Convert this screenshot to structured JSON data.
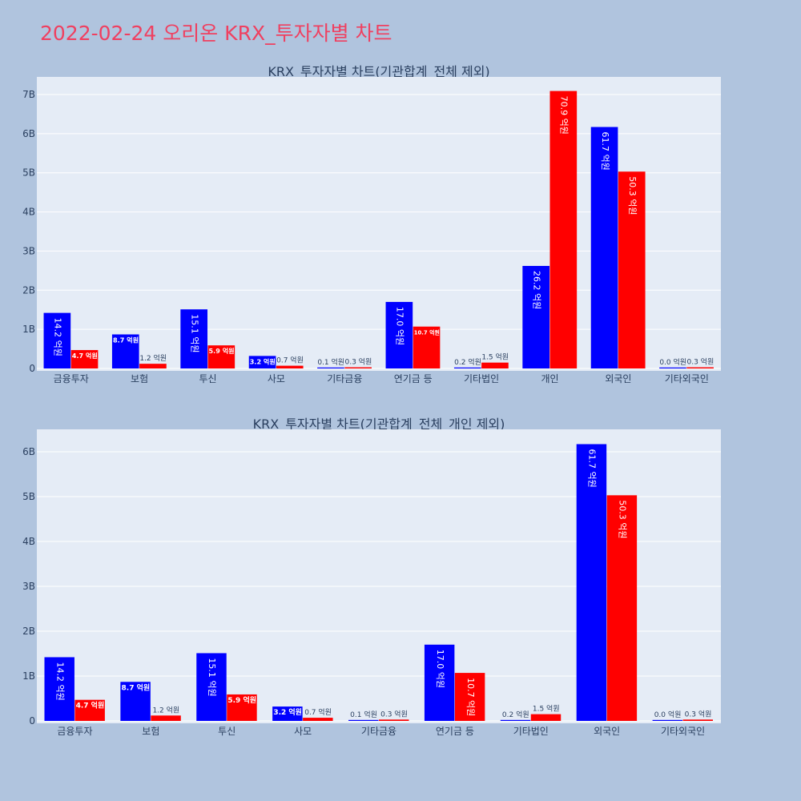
{
  "page": {
    "title": "2022-02-24 오리온 KRX_투자자별 차트"
  },
  "colors": {
    "buy": "#0000ff",
    "sell": "#ff0000",
    "plot_bg": "#e5ecf6",
    "page_bg": "#b0c4de",
    "title": "#ef4060"
  },
  "chart_data": [
    {
      "type": "bar",
      "title": "KRX_투자자별 차트(기관합계_전체 제외)",
      "categories": [
        "금융투자",
        "보험",
        "투신",
        "사모",
        "기타금융",
        "연기금 등",
        "기타법인",
        "개인",
        "외국인",
        "기타외국인"
      ],
      "series": [
        {
          "values": [
            1420000000.0,
            870000000.0,
            1510000000.0,
            320000000.0,
            10000000.0,
            1700000000.0,
            20000000.0,
            2620000000.0,
            6170000000.0,
            0.0
          ],
          "labels": [
            "14.2 억원",
            "8.7 억원",
            "15.1 억원",
            "3.2 억원",
            "0.1 억원",
            "17.0 억원",
            "0.2 억원",
            "26.2 억원",
            "61.7 억원",
            "0.0 억원"
          ]
        },
        {
          "values": [
            470000000.0,
            120000000.0,
            590000000.0,
            70000000.0,
            30000000.0,
            1070000000.0,
            150000000.0,
            7090000000.0,
            5030000000.0,
            30000000.0
          ],
          "labels": [
            "4.7 억원",
            "1.2 억원",
            "5.9 억원",
            "0.7 억원",
            "0.3 억원",
            "10.7 억원",
            "1.5 억원",
            "70.9 억원",
            "50.3 억원",
            "0.3 억원"
          ]
        }
      ],
      "ylim": [
        0,
        7450000000.0
      ],
      "yticks": [
        0,
        1000000000.0,
        2000000000.0,
        3000000000.0,
        4000000000.0,
        5000000000.0,
        6000000000.0,
        7000000000.0
      ],
      "ytick_labels": [
        "0",
        "1B",
        "2B",
        "3B",
        "4B",
        "5B",
        "6B",
        "7B"
      ],
      "grid": true,
      "legend": "none"
    },
    {
      "type": "bar",
      "title": "KRX_투자자별 차트(기관합계_전체_개인 제외)",
      "categories": [
        "금융투자",
        "보험",
        "투신",
        "사모",
        "기타금융",
        "연기금 등",
        "기타법인",
        "외국인",
        "기타외국인"
      ],
      "series": [
        {
          "values": [
            1420000000.0,
            870000000.0,
            1510000000.0,
            320000000.0,
            10000000.0,
            1700000000.0,
            20000000.0,
            6170000000.0,
            0.0
          ],
          "labels": [
            "14.2 억원",
            "8.7 억원",
            "15.1 억원",
            "3.2 억원",
            "0.1 억원",
            "17.0 억원",
            "0.2 억원",
            "61.7 억원",
            "0.0 억원"
          ]
        },
        {
          "values": [
            470000000.0,
            120000000.0,
            590000000.0,
            70000000.0,
            30000000.0,
            1070000000.0,
            150000000.0,
            5030000000.0,
            30000000.0
          ],
          "labels": [
            "4.7 억원",
            "1.2 억원",
            "5.9 억원",
            "0.7 억원",
            "0.3 억원",
            "10.7 억원",
            "1.5 억원",
            "50.3 억원",
            "0.3 억원"
          ]
        }
      ],
      "ylim": [
        0,
        6500000000.0
      ],
      "yticks": [
        0,
        1000000000.0,
        2000000000.0,
        3000000000.0,
        4000000000.0,
        5000000000.0,
        6000000000.0
      ],
      "ytick_labels": [
        "0",
        "1B",
        "2B",
        "3B",
        "4B",
        "5B",
        "6B"
      ],
      "grid": true,
      "legend": "none"
    }
  ]
}
